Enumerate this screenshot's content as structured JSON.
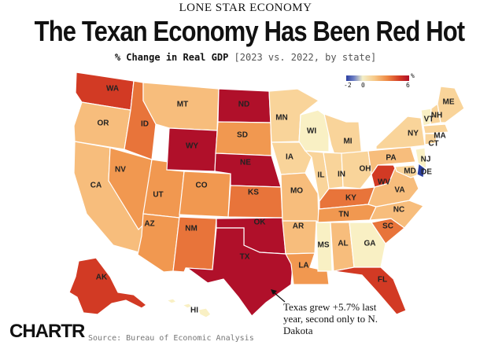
{
  "header": {
    "kicker": "LONE STAR ECONOMY",
    "title": "The Texan Economy Has Been Red Hot",
    "subtitle_bold": "% Change in Real GDP",
    "subtitle_note": "[2023 vs. 2022, by state]"
  },
  "legend": {
    "unit": "%",
    "ticks": [
      "-2",
      "0",
      "6"
    ],
    "min": -2,
    "max": 6
  },
  "colors": {
    "cream": "#f9f0c4",
    "light": "#f9d49a",
    "peach": "#f7bd7c",
    "orange": "#f19850",
    "dark_orange": "#e8743a",
    "red": "#d23a24",
    "dark_red": "#b0102a",
    "blue": "#2b3fa0"
  },
  "states": [
    {
      "abbr": "WA",
      "color": "#d23a24"
    },
    {
      "abbr": "OR",
      "color": "#f7bd7c"
    },
    {
      "abbr": "CA",
      "color": "#f7bd7c"
    },
    {
      "abbr": "ID",
      "color": "#e8743a"
    },
    {
      "abbr": "NV",
      "color": "#f19850"
    },
    {
      "abbr": "UT",
      "color": "#f19850"
    },
    {
      "abbr": "AZ",
      "color": "#f19850"
    },
    {
      "abbr": "MT",
      "color": "#f7bd7c"
    },
    {
      "abbr": "WY",
      "color": "#b0102a"
    },
    {
      "abbr": "CO",
      "color": "#f19850"
    },
    {
      "abbr": "NM",
      "color": "#e8743a"
    },
    {
      "abbr": "ND",
      "color": "#b0102a"
    },
    {
      "abbr": "SD",
      "color": "#f19850"
    },
    {
      "abbr": "NE",
      "color": "#b0102a"
    },
    {
      "abbr": "KS",
      "color": "#e8743a"
    },
    {
      "abbr": "OK",
      "color": "#b0102a"
    },
    {
      "abbr": "TX",
      "color": "#b0102a"
    },
    {
      "abbr": "MN",
      "color": "#f9d49a"
    },
    {
      "abbr": "IA",
      "color": "#f9d49a"
    },
    {
      "abbr": "MO",
      "color": "#f7bd7c"
    },
    {
      "abbr": "AR",
      "color": "#f7bd7c"
    },
    {
      "abbr": "LA",
      "color": "#f19850"
    },
    {
      "abbr": "WI",
      "color": "#f9f0c4"
    },
    {
      "abbr": "IL",
      "color": "#f9d49a"
    },
    {
      "abbr": "MI",
      "color": "#f9d49a"
    },
    {
      "abbr": "IN",
      "color": "#f9d49a"
    },
    {
      "abbr": "OH",
      "color": "#f9d49a"
    },
    {
      "abbr": "KY",
      "color": "#e8743a"
    },
    {
      "abbr": "TN",
      "color": "#f19850"
    },
    {
      "abbr": "MS",
      "color": "#f9f0c4"
    },
    {
      "abbr": "AL",
      "color": "#f7bd7c"
    },
    {
      "abbr": "GA",
      "color": "#f9f0c4"
    },
    {
      "abbr": "FL",
      "color": "#d23a24"
    },
    {
      "abbr": "SC",
      "color": "#e8743a"
    },
    {
      "abbr": "NC",
      "color": "#f7bd7c"
    },
    {
      "abbr": "VA",
      "color": "#f7bd7c"
    },
    {
      "abbr": "WV",
      "color": "#d23a24"
    },
    {
      "abbr": "PA",
      "color": "#f7bd7c"
    },
    {
      "abbr": "NY",
      "color": "#f9d49a"
    },
    {
      "abbr": "VT",
      "color": "#f9f0c4"
    },
    {
      "abbr": "NH",
      "color": "#f9d49a"
    },
    {
      "abbr": "ME",
      "color": "#f9d49a"
    },
    {
      "abbr": "MA",
      "color": "#f9d49a"
    },
    {
      "abbr": "CT",
      "color": "#f9d49a"
    },
    {
      "abbr": "NJ",
      "color": "#f9f0c4"
    },
    {
      "abbr": "MD",
      "color": "#f9d49a"
    },
    {
      "abbr": "DE",
      "color": "#2b3fa0"
    },
    {
      "abbr": "AK",
      "color": "#d23a24"
    },
    {
      "abbr": "HI",
      "color": "#f9f0c4"
    }
  ],
  "annotation": "Texas grew +5.7% last year, second only to N. Dakota",
  "footer": {
    "logo": "CHARTR",
    "source": "Source: Bureau of Economic Analysis"
  }
}
